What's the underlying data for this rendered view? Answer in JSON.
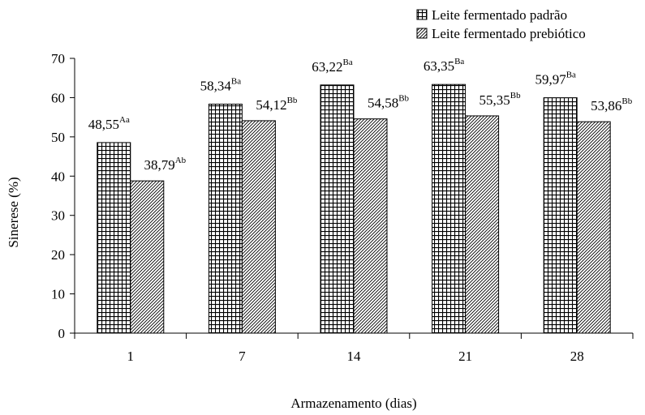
{
  "chart_data": {
    "type": "bar",
    "title": "",
    "xlabel": "Armazenamento (dias)",
    "ylabel": "Sinerese (%)",
    "ylim": [
      0,
      70
    ],
    "yticks": [
      "0",
      "10",
      "20",
      "30",
      "40",
      "50",
      "60",
      "70"
    ],
    "categories": [
      "1",
      "7",
      "14",
      "21",
      "28"
    ],
    "legend_position": "top-right",
    "grid": false,
    "series": [
      {
        "name": "Leite fermentado padrão",
        "pattern": "grid",
        "values": [
          48.55,
          58.34,
          63.22,
          63.35,
          59.97
        ],
        "labels": [
          "48,55",
          "58,34",
          "63,22",
          "63,35",
          "59,97"
        ],
        "superscripts": [
          "Aa",
          "Ba",
          "Ba",
          "Ba",
          "Ba"
        ]
      },
      {
        "name": "Leite fermentado prebiótico",
        "pattern": "diagonal",
        "values": [
          38.79,
          54.12,
          54.58,
          55.35,
          53.86
        ],
        "labels": [
          "38,79",
          "54,12",
          "54,58",
          "55,35",
          "53,86"
        ],
        "superscripts": [
          "Ab",
          "Bb",
          "Bb",
          "Bb",
          "Bb"
        ]
      }
    ]
  }
}
